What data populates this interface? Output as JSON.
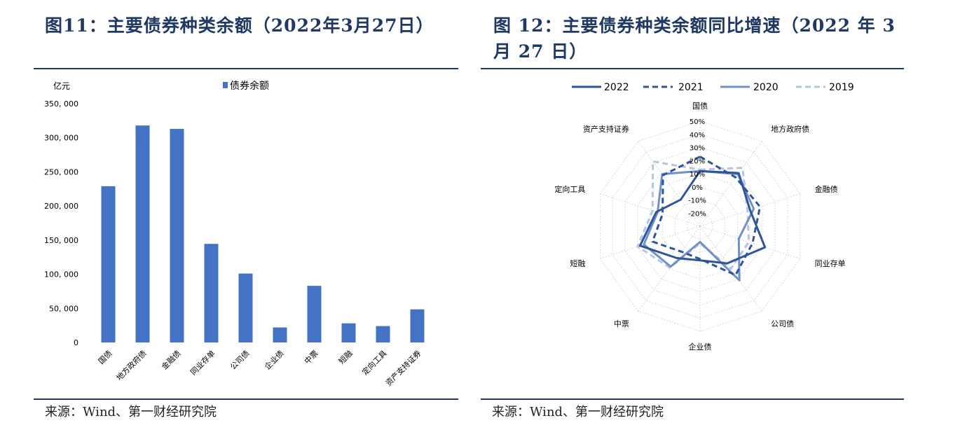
{
  "figures": {
    "left": {
      "title": "图11：主要债券种类余额（2022年3月27日）",
      "source": "来源：Wind、第一财经研究院"
    },
    "right": {
      "title": "图 12：主要债券种类余额同比增速（2022 年 3 月 27 日）",
      "source": "来源：Wind、第一财经研究院"
    }
  },
  "colors": {
    "title": "#1f3864",
    "bar": "#4472c4",
    "s2022": "#2f5597",
    "s2021": "#2f5597",
    "s2020": "#7090c8",
    "s2019": "#b4c4e4",
    "grid": "#d9d9d9"
  },
  "chart_data": [
    {
      "type": "bar",
      "unit_label": "亿元",
      "legend": [
        "债券余额"
      ],
      "legend_position": "top",
      "categories": [
        "国债",
        "地方政府债",
        "金融债",
        "同业存单",
        "公司债",
        "企业债",
        "中票",
        "短融",
        "定向工具",
        "资产支持证券"
      ],
      "series": [
        {
          "name": "债券余额",
          "values": [
            229000,
            318000,
            313000,
            144500,
            101000,
            22000,
            83000,
            28000,
            24000,
            48500
          ]
        }
      ],
      "ylim": [
        0,
        350000
      ],
      "yticks": [
        0,
        50000,
        100000,
        150000,
        200000,
        250000,
        300000,
        350000
      ],
      "ytick_labels": [
        "0",
        "50, 000",
        "100, 000",
        "150, 000",
        "200, 000",
        "250, 000",
        "300, 000",
        "350, 000"
      ],
      "grid": false
    },
    {
      "type": "radar",
      "categories": [
        "国债",
        "地方政府债",
        "金融债",
        "同业存单",
        "公司债",
        "企业债",
        "中票",
        "短融",
        "定向工具",
        "资产支持证券"
      ],
      "rlim": [
        -30,
        50
      ],
      "rticks": [
        -20,
        -10,
        0,
        10,
        20,
        30,
        40,
        50
      ],
      "rtick_labels": [
        "-20%",
        "-10%",
        "0%",
        "10%",
        "20%",
        "30%",
        "40%",
        "50%"
      ],
      "legend_position": "top",
      "series": [
        {
          "name": "2022",
          "style": "solid",
          "values": [
            12,
            20,
            10,
            22,
            5,
            -4,
            0,
            18,
            5,
            -5
          ]
        },
        {
          "name": "2021",
          "style": "dashed",
          "values": [
            23,
            16,
            18,
            12,
            16,
            -5,
            -6,
            8,
            0,
            18
          ]
        },
        {
          "name": "2020",
          "style": "solid",
          "values": [
            12,
            19,
            13,
            1,
            21,
            -18,
            8,
            15,
            4,
            19
          ]
        },
        {
          "name": "2019",
          "style": "dashed",
          "values": [
            13,
            25,
            8,
            9,
            10,
            -17,
            9,
            20,
            8,
            31
          ]
        }
      ],
      "grid": true
    }
  ]
}
